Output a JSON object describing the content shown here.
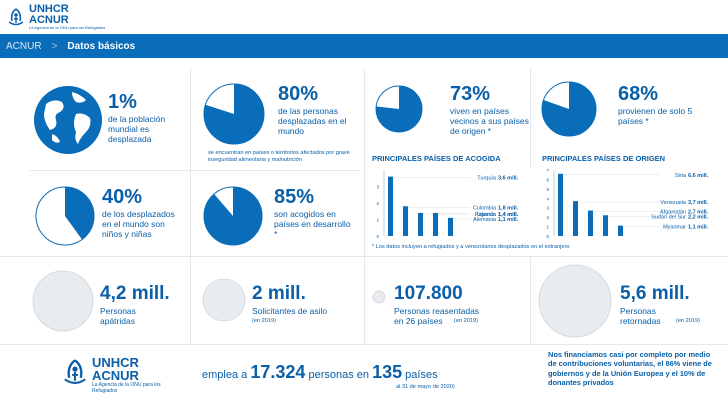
{
  "header": {
    "logo_line1": "UNHCR",
    "logo_line2": "ACNUR",
    "logo_tagline": "La Agencia de la ONU para los Refugiados"
  },
  "nav": {
    "home": "ACNUR",
    "separator": ">",
    "current": "Datos básicos"
  },
  "colors": {
    "brand": "#0a6db9",
    "text": "#0a5fa8",
    "circle_fill": "#e9ecef"
  },
  "stats": {
    "displaced_world": {
      "value": "1%",
      "desc": "de la población mundial es desplazada",
      "fraction": 0.01
    },
    "displaced_own_country": {
      "value": "80%",
      "desc": "de las personas desplazadas en el mundo",
      "note": "se encuentran en países o territorios afectados por grave inseguridad alimentaria y malnutrición",
      "fraction": 0.8
    },
    "neighbors": {
      "value": "73%",
      "desc": "viven en países vecinos a sus países de origen *",
      "fraction": 0.73
    },
    "five_countries": {
      "value": "68%",
      "desc": "provienen de solo 5 países *",
      "fraction": 0.68
    },
    "children": {
      "value": "40%",
      "desc": "de los desplazados en el mundo son niños y niñas",
      "fraction": 0.4
    },
    "developing": {
      "value": "85%",
      "desc": "son acogidos en países en desarrollo *",
      "fraction": 0.85
    },
    "stateless": {
      "value": "4,2 mill.",
      "desc": "Personas apátridas"
    },
    "asylum": {
      "value": "2 mill.",
      "desc": "Solicitantes de asilo",
      "note": "(en 2019)"
    },
    "resettled": {
      "value": "107.800",
      "desc": "Personas reasentadas en 26 países",
      "note": "(en 2019)"
    },
    "returned": {
      "value": "5,6 mill.",
      "desc": "Personas retornadas",
      "note": "(en 2019)"
    }
  },
  "chart_data": [
    {
      "type": "bar",
      "title": "PRINCIPALES PAÍSES DE ACOGIDA",
      "categories": [
        "Turquía",
        "Colombia",
        "Pakistán",
        "Uganda",
        "Alemania"
      ],
      "values": [
        3.6,
        1.8,
        1.4,
        1.4,
        1.1
      ],
      "value_labels": [
        "3,6 mill.",
        "1,8 mill.",
        "1,4 mill.",
        "1,4 mill.",
        "1,1 mill."
      ],
      "yticks": [
        "0",
        "1",
        "2",
        "3"
      ],
      "ylim": [
        0,
        4
      ]
    },
    {
      "type": "bar",
      "title": "PRINCIPALES PAÍSES DE ORIGEN",
      "categories": [
        "Siria",
        "Venezuela",
        "Afganistán",
        "Sudán del Sur",
        "Myanmar"
      ],
      "values": [
        6.6,
        3.7,
        2.7,
        2.2,
        1.1
      ],
      "value_labels": [
        "6,6 mill.",
        "3,7 mill.",
        "2,7 mill.",
        "2,2 mill.",
        "1,1 mill."
      ],
      "yticks": [
        "0",
        "1",
        "2",
        "3",
        "4",
        "5",
        "6",
        "7"
      ],
      "ylim": [
        0,
        7
      ]
    }
  ],
  "footnote": "* Los datos incluyen a refugiados y a venezolanos desplazados en el extranjero",
  "footer": {
    "emplea_prefix": "emplea a",
    "staff": "17.324",
    "personas_en": "personas en",
    "countries": "135",
    "paises": "países",
    "date_note": "al 31 de mayo de 2020)",
    "funding": "Nos financiamos casi por completo por medio de contribuciones voluntarias, el 86% viene de gobiernos y de la Unión Europea y el 10% de donantes privados"
  }
}
